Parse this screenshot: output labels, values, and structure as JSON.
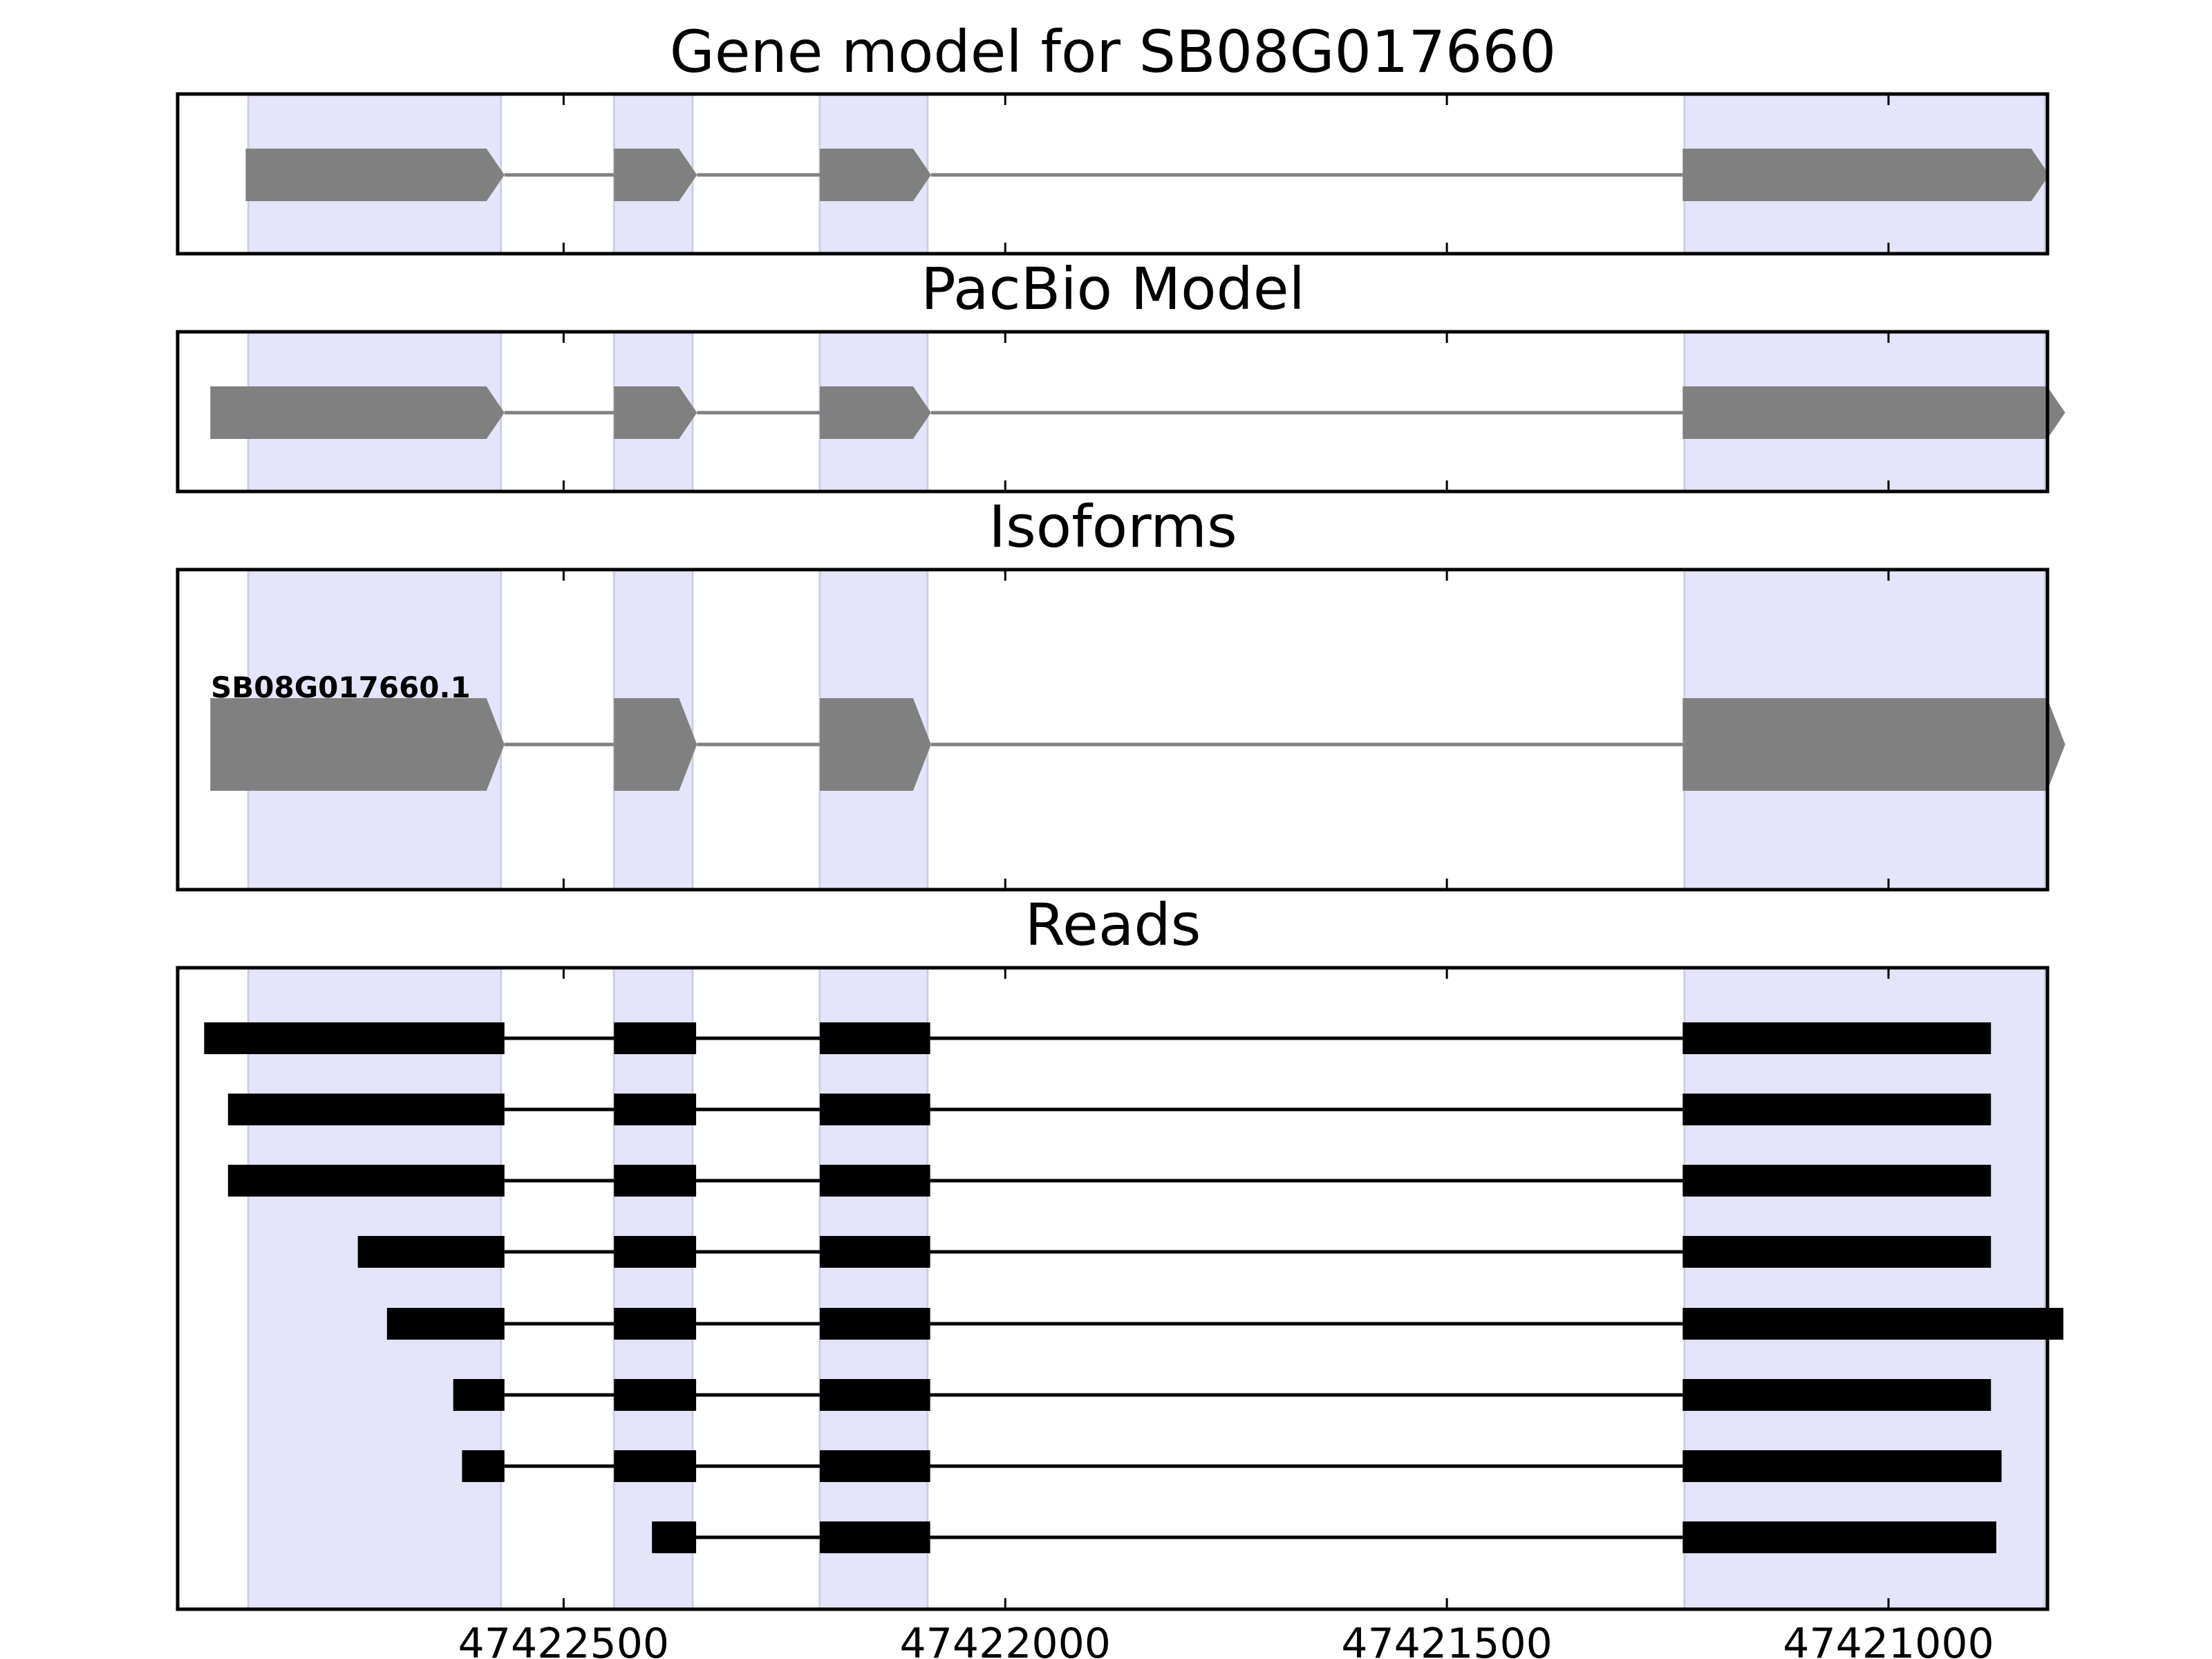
{
  "chart_data": {
    "type": "gene-model-track",
    "x_axis": {
      "reversed": true,
      "xlim": [
        47422937,
        47420820
      ],
      "ticks": [
        47422500,
        47422000,
        47421500,
        47421000
      ],
      "tick_labels": [
        "47422500",
        "47422000",
        "47421500",
        "47421000"
      ]
    },
    "shaded_exons": [
      {
        "start": 47422857,
        "end": 47422571
      },
      {
        "start": 47422443,
        "end": 47422354
      },
      {
        "start": 47422210,
        "end": 47422088
      },
      {
        "start": 47421231,
        "end": 47420823
      }
    ],
    "colors": {
      "shade": "#e4e4fb",
      "shade_edge": "#cdcde8",
      "model": "#808080",
      "reads": "#000000",
      "frame": "#000000"
    },
    "panels": [
      {
        "id": "gene-model",
        "title": "Gene model for SB08G017660",
        "kind": "model",
        "strand": "-",
        "exons": [
          {
            "start": 47422860,
            "end": 47422567
          },
          {
            "start": 47422443,
            "end": 47422349
          },
          {
            "start": 47422210,
            "end": 47422084
          },
          {
            "start": 47421233,
            "end": 47420818
          }
        ]
      },
      {
        "id": "pacbio-model",
        "title": "PacBio Model",
        "kind": "model",
        "strand": "-",
        "exons": [
          {
            "start": 47422900,
            "end": 47422567
          },
          {
            "start": 47422443,
            "end": 47422349
          },
          {
            "start": 47422210,
            "end": 47422084
          },
          {
            "start": 47421233,
            "end": 47420800
          }
        ]
      },
      {
        "id": "isoforms",
        "title": "Isoforms",
        "kind": "isoforms",
        "isoforms": [
          {
            "name": "SB08G017660.1",
            "strand": "-",
            "exons": [
              {
                "start": 47422900,
                "end": 47422567
              },
              {
                "start": 47422443,
                "end": 47422349
              },
              {
                "start": 47422210,
                "end": 47422084
              },
              {
                "start": 47421233,
                "end": 47420800
              }
            ]
          }
        ]
      },
      {
        "id": "reads",
        "title": "Reads",
        "kind": "reads",
        "reads": [
          {
            "exons": [
              [
                47422907,
                47422567
              ],
              [
                47422443,
                47422350
              ],
              [
                47422210,
                47422085
              ],
              [
                47421233,
                47420884
              ]
            ]
          },
          {
            "exons": [
              [
                47422880,
                47422567
              ],
              [
                47422443,
                47422350
              ],
              [
                47422210,
                47422085
              ],
              [
                47421233,
                47420884
              ]
            ]
          },
          {
            "exons": [
              [
                47422880,
                47422567
              ],
              [
                47422443,
                47422350
              ],
              [
                47422210,
                47422085
              ],
              [
                47421233,
                47420884
              ]
            ]
          },
          {
            "exons": [
              [
                47422733,
                47422567
              ],
              [
                47422443,
                47422350
              ],
              [
                47422210,
                47422085
              ],
              [
                47421233,
                47420884
              ]
            ]
          },
          {
            "exons": [
              [
                47422700,
                47422567
              ],
              [
                47422443,
                47422350
              ],
              [
                47422210,
                47422085
              ],
              [
                47421233,
                47420802
              ]
            ]
          },
          {
            "exons": [
              [
                47422625,
                47422567
              ],
              [
                47422443,
                47422350
              ],
              [
                47422210,
                47422085
              ],
              [
                47421233,
                47420884
              ]
            ]
          },
          {
            "exons": [
              [
                47422615,
                47422567
              ],
              [
                47422443,
                47422350
              ],
              [
                47422210,
                47422085
              ],
              [
                47421233,
                47420872
              ]
            ]
          },
          {
            "exons": [
              [
                47422400,
                47422350
              ],
              [
                47422210,
                47422085
              ],
              [
                47421233,
                47420878
              ]
            ]
          }
        ]
      }
    ]
  }
}
